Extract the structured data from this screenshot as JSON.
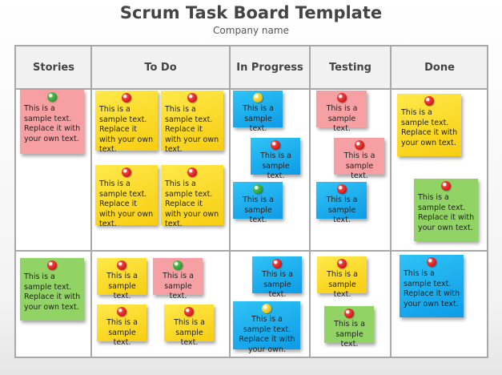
{
  "header": {
    "title": "Scrum Task Board Template",
    "subtitle": "Company name"
  },
  "columns": [
    "Stories",
    "To Do",
    "In Progress",
    "Testing",
    "Done"
  ],
  "texts": {
    "long": "This is a sample text. Replace it with your own text.",
    "short": "This is a sample text.",
    "medium": "This is a sample text. Replace it with your own."
  },
  "colors": {
    "yellow": "#f7d21a",
    "pink": "#f7a0a3",
    "blue": "#17aaf0",
    "green": "#92d365",
    "pin_red": "#d91a1a"
  },
  "notes": [
    {
      "column": "Stories",
      "row": 1,
      "color": "pink",
      "pin": "green",
      "text": "long"
    },
    {
      "column": "To Do",
      "row": 1,
      "color": "yellow",
      "pin": "red",
      "text": "long"
    },
    {
      "column": "To Do",
      "row": 1,
      "color": "yellow",
      "pin": "red",
      "text": "long"
    },
    {
      "column": "To Do",
      "row": 1,
      "color": "yellow",
      "pin": "red",
      "text": "long"
    },
    {
      "column": "To Do",
      "row": 1,
      "color": "yellow",
      "pin": "red",
      "text": "long"
    },
    {
      "column": "In Progress",
      "row": 1,
      "color": "blue",
      "pin": "yellow",
      "text": "short"
    },
    {
      "column": "In Progress",
      "row": 1,
      "color": "blue",
      "pin": "red",
      "text": "short"
    },
    {
      "column": "In Progress",
      "row": 1,
      "color": "blue",
      "pin": "green",
      "text": "short"
    },
    {
      "column": "Testing",
      "row": 1,
      "color": "pink",
      "pin": "red",
      "text": "short"
    },
    {
      "column": "Testing",
      "row": 1,
      "color": "pink",
      "pin": "red",
      "text": "short"
    },
    {
      "column": "Testing",
      "row": 1,
      "color": "blue",
      "pin": "red",
      "text": "short"
    },
    {
      "column": "Done",
      "row": 1,
      "color": "yellow",
      "pin": "red",
      "text": "long"
    },
    {
      "column": "Done",
      "row": 1,
      "color": "green",
      "pin": "red",
      "text": "long"
    },
    {
      "column": "Stories",
      "row": 2,
      "color": "green",
      "pin": "red",
      "text": "long"
    },
    {
      "column": "To Do",
      "row": 2,
      "color": "yellow",
      "pin": "red",
      "text": "short"
    },
    {
      "column": "To Do",
      "row": 2,
      "color": "pink",
      "pin": "green",
      "text": "short"
    },
    {
      "column": "To Do",
      "row": 2,
      "color": "yellow",
      "pin": "red",
      "text": "short"
    },
    {
      "column": "To Do",
      "row": 2,
      "color": "yellow",
      "pin": "red",
      "text": "short"
    },
    {
      "column": "In Progress",
      "row": 2,
      "color": "blue",
      "pin": "red",
      "text": "short"
    },
    {
      "column": "In Progress",
      "row": 2,
      "color": "blue",
      "pin": "yellow",
      "text": "medium"
    },
    {
      "column": "Testing",
      "row": 2,
      "color": "yellow",
      "pin": "red",
      "text": "short"
    },
    {
      "column": "Testing",
      "row": 2,
      "color": "green",
      "pin": "red",
      "text": "short"
    },
    {
      "column": "Done",
      "row": 2,
      "color": "blue",
      "pin": "red",
      "text": "long"
    }
  ]
}
